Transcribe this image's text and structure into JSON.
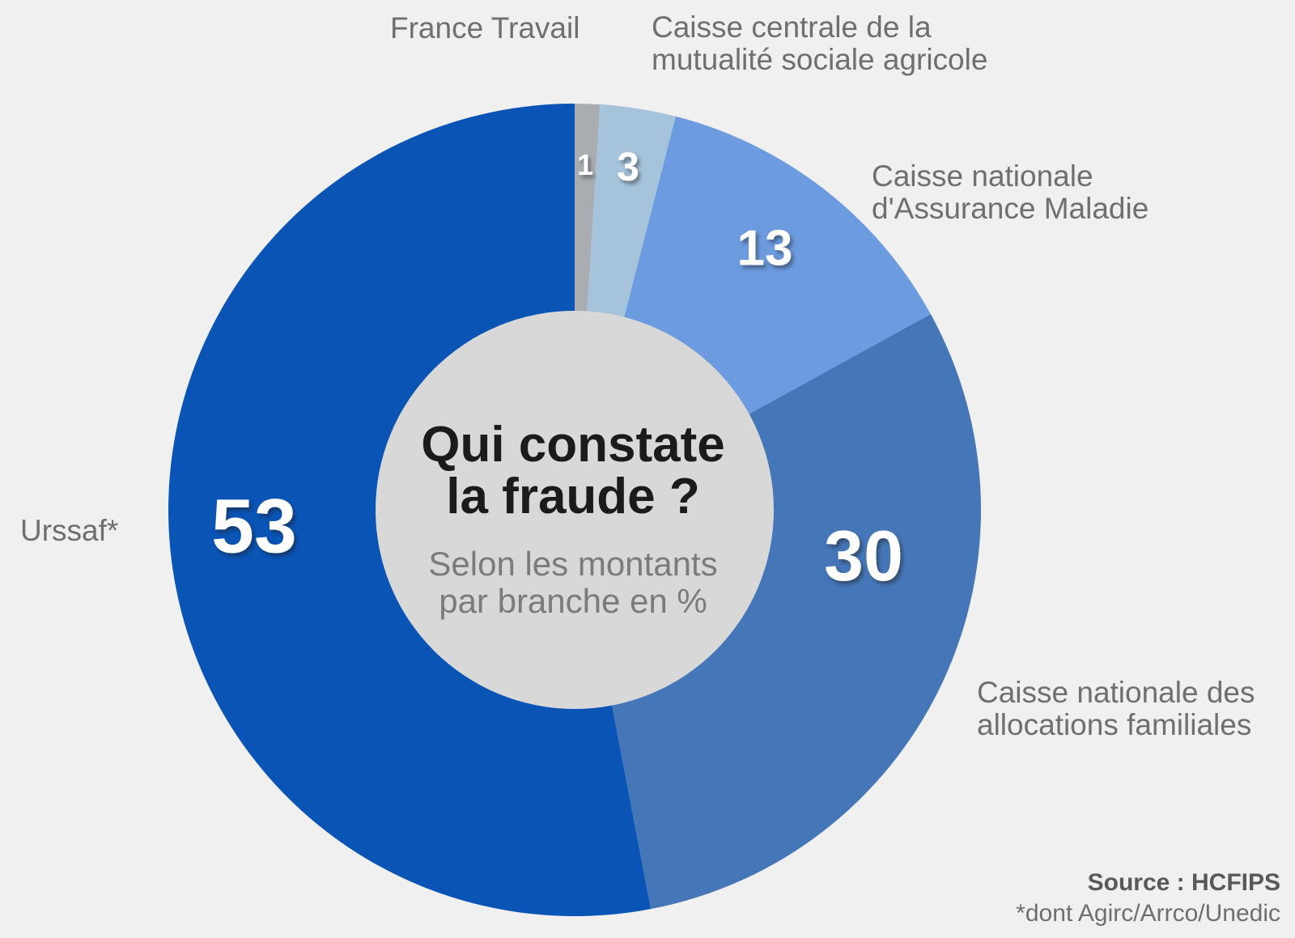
{
  "chart_data": {
    "type": "pie",
    "subtype": "donut",
    "title": "Qui constate la fraude ?",
    "subtitle": "Selon les montants par branche en %",
    "unit": "%",
    "start_angle_deg": 0,
    "direction": "clockwise",
    "categories": [
      "France Travail",
      "Caisse centrale de la mutualité sociale agricole",
      "Caisse nationale d'Assurance Maladie",
      "Caisse nationale des allocations familiales",
      "Urssaf*"
    ],
    "values": [
      1,
      3,
      13,
      30,
      53
    ],
    "colors": [
      "#a9adb2",
      "#a6c3dc",
      "#6c9be0",
      "#4577b8",
      "#0a54b6"
    ],
    "hole_color": "#d8d8d9",
    "background_color": "#f0f0f1",
    "value_label_color": "#ffffff",
    "legend_position": "outside-labels",
    "grid": false
  },
  "center": {
    "title": "Qui constate\nla fraude ?",
    "subtitle": "Selon les montants\npar branche en %"
  },
  "labels": {
    "france_travail": "France Travail",
    "ccmsa": "Caisse centrale de la\nmutualité sociale agricole",
    "cnam": "Caisse nationale\nd'Assurance Maladie",
    "cnaf": "Caisse nationale des\nallocations familiales",
    "urssaf": "Urssaf*"
  },
  "source": {
    "label": "Source : HCFIPS",
    "footnote": "*dont Agirc/Arrco/Unedic"
  }
}
